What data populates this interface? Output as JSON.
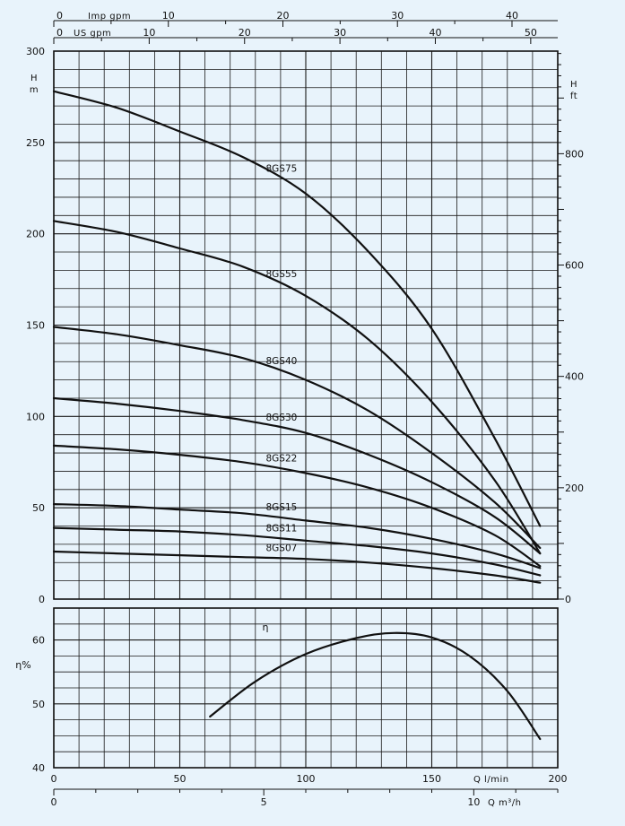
{
  "colors": {
    "background": "#e8f3fb",
    "ink": "#111111",
    "grid": "#1a1a1a"
  },
  "chart_data": [
    {
      "type": "line",
      "title": "",
      "xlabel": "Q l/min",
      "ylabel": "H m",
      "xlim": [
        0,
        200
      ],
      "ylim": [
        0,
        300
      ],
      "yticks": [
        "0",
        "50",
        "100",
        "150",
        "200",
        "250",
        "300"
      ],
      "y2label": "H ft",
      "y2ticks": [
        "0",
        "200",
        "400",
        "600",
        "800"
      ],
      "top_axes": [
        {
          "label": "US gpm",
          "ticks": [
            "0",
            "10",
            "20",
            "30",
            "40",
            "50"
          ]
        },
        {
          "label": "Imp gpm",
          "ticks": [
            "0",
            "10",
            "20",
            "30",
            "40"
          ]
        }
      ],
      "grid": true,
      "series": [
        {
          "name": "8GS75",
          "x": [
            0,
            25,
            50,
            75,
            100,
            125,
            150,
            175,
            193
          ],
          "y": [
            278,
            269,
            256,
            242,
            222,
            190,
            148,
            88,
            40
          ]
        },
        {
          "name": "8GS55",
          "x": [
            0,
            25,
            50,
            75,
            100,
            125,
            150,
            175,
            193
          ],
          "y": [
            207,
            201,
            192,
            182,
            166,
            142,
            108,
            65,
            25
          ]
        },
        {
          "name": "8GS40",
          "x": [
            0,
            25,
            50,
            75,
            100,
            125,
            150,
            175,
            193
          ],
          "y": [
            149,
            145,
            139,
            132,
            120,
            103,
            80,
            53,
            28
          ]
        },
        {
          "name": "8GS30",
          "x": [
            0,
            25,
            50,
            75,
            100,
            125,
            150,
            175,
            193
          ],
          "y": [
            110,
            107,
            103,
            98,
            91,
            79,
            64,
            45,
            25
          ]
        },
        {
          "name": "8GS22",
          "x": [
            0,
            25,
            50,
            75,
            100,
            125,
            150,
            175,
            193
          ],
          "y": [
            84,
            82,
            79,
            75,
            69,
            61,
            50,
            35,
            18
          ]
        },
        {
          "name": "8GS15",
          "x": [
            0,
            25,
            50,
            75,
            100,
            125,
            150,
            175,
            193
          ],
          "y": [
            52,
            51,
            49,
            47,
            43,
            39,
            33,
            25,
            17
          ]
        },
        {
          "name": "8GS11",
          "x": [
            0,
            25,
            50,
            75,
            100,
            125,
            150,
            175,
            193
          ],
          "y": [
            39,
            38,
            37,
            35,
            32,
            29,
            25,
            19,
            13
          ]
        },
        {
          "name": "8GS07",
          "x": [
            0,
            25,
            50,
            75,
            100,
            125,
            150,
            175,
            193
          ],
          "y": [
            26,
            25,
            24,
            23,
            22,
            20,
            17,
            13,
            9
          ]
        }
      ]
    },
    {
      "type": "line",
      "title": "",
      "xlabel": "Q l/min",
      "ylabel": "η%",
      "xlim": [
        0,
        200
      ],
      "ylim": [
        40,
        65
      ],
      "xticks": [
        "0",
        "50",
        "100",
        "150",
        "200"
      ],
      "yticks": [
        "40",
        "50",
        "60"
      ],
      "bottom_axis": {
        "label": "Q m³/h",
        "ticks": [
          "0",
          "5",
          "10"
        ]
      },
      "grid": true,
      "series": [
        {
          "name": "η",
          "x": [
            62,
            80,
            100,
            120,
            135,
            150,
            165,
            180,
            193
          ],
          "y": [
            48,
            53.5,
            57.8,
            60.3,
            61.1,
            60.4,
            57.5,
            52,
            44.5
          ]
        }
      ]
    }
  ]
}
